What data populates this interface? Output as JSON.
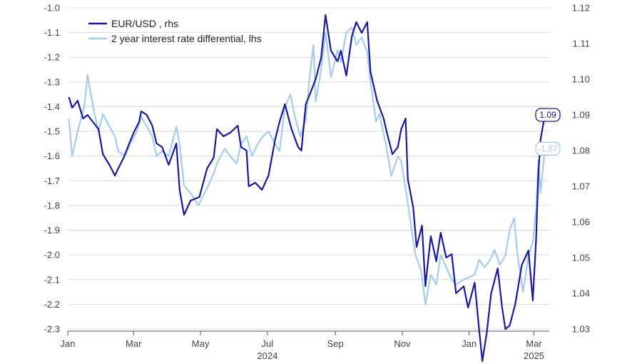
{
  "chart_data": {
    "type": "line",
    "left_axis": {
      "ylim": [
        -2.3,
        -1.0
      ],
      "ticks": [
        "-1.0",
        "-1.1",
        "-1.2",
        "-1.3",
        "-1.4",
        "-1.5",
        "-1.6",
        "-1.7",
        "-1.8",
        "-1.9",
        "-2.0",
        "-2.1",
        "-2.2",
        "-2.3"
      ]
    },
    "right_axis": {
      "ylim": [
        1.03,
        1.12
      ],
      "ticks": [
        "1.12",
        "1.11",
        "1.10",
        "1.09",
        "1.08",
        "1.07",
        "1.06",
        "1.05",
        "1.04",
        "1.03"
      ]
    },
    "x_axis": {
      "range": [
        "2024-01-01",
        "2025-03-15"
      ],
      "month_labels": [
        {
          "label": "Jan",
          "date": "2024-01-01"
        },
        {
          "label": "Mar",
          "date": "2024-03-01"
        },
        {
          "label": "May",
          "date": "2024-05-01"
        },
        {
          "label": "Jul",
          "date": "2024-07-01"
        },
        {
          "label": "Sep",
          "date": "2024-09-01"
        },
        {
          "label": "Nov",
          "date": "2024-11-01"
        },
        {
          "label": "Jan",
          "date": "2025-01-01"
        },
        {
          "label": "Mar",
          "date": "2025-03-01"
        }
      ],
      "year_labels": [
        {
          "label": "2024",
          "date": "2024-07-01"
        },
        {
          "label": "2025",
          "date": "2025-03-01"
        }
      ]
    },
    "grid": "horizontal",
    "legend_position": "top-left",
    "series": [
      {
        "name": "EUR/USD , rhs",
        "axis": "right",
        "color": "#1a1aa0",
        "points": [
          [
            "2024-01-02",
            1.095
          ],
          [
            "2024-01-05",
            1.092
          ],
          [
            "2024-01-10",
            1.094
          ],
          [
            "2024-01-15",
            1.089
          ],
          [
            "2024-01-19",
            1.09
          ],
          [
            "2024-01-24",
            1.088
          ],
          [
            "2024-01-29",
            1.086
          ],
          [
            "2024-02-02",
            1.079
          ],
          [
            "2024-02-08",
            1.076
          ],
          [
            "2024-02-13",
            1.073
          ],
          [
            "2024-02-16",
            1.075
          ],
          [
            "2024-02-21",
            1.078
          ],
          [
            "2024-02-26",
            1.082
          ],
          [
            "2024-03-01",
            1.085
          ],
          [
            "2024-03-06",
            1.088
          ],
          [
            "2024-03-08",
            1.091
          ],
          [
            "2024-03-13",
            1.09
          ],
          [
            "2024-03-18",
            1.087
          ],
          [
            "2024-03-22",
            1.082
          ],
          [
            "2024-03-27",
            1.081
          ],
          [
            "2024-04-02",
            1.076
          ],
          [
            "2024-04-09",
            1.082
          ],
          [
            "2024-04-12",
            1.069
          ],
          [
            "2024-04-16",
            1.062
          ],
          [
            "2024-04-22",
            1.066
          ],
          [
            "2024-04-30",
            1.067
          ],
          [
            "2024-05-07",
            1.075
          ],
          [
            "2024-05-13",
            1.078
          ],
          [
            "2024-05-16",
            1.086
          ],
          [
            "2024-05-22",
            1.084
          ],
          [
            "2024-05-28",
            1.085
          ],
          [
            "2024-06-04",
            1.087
          ],
          [
            "2024-06-07",
            1.081
          ],
          [
            "2024-06-12",
            1.08
          ],
          [
            "2024-06-14",
            1.07
          ],
          [
            "2024-06-20",
            1.071
          ],
          [
            "2024-06-26",
            1.069
          ],
          [
            "2024-07-02",
            1.073
          ],
          [
            "2024-07-08",
            1.083
          ],
          [
            "2024-07-12",
            1.088
          ],
          [
            "2024-07-17",
            1.093
          ],
          [
            "2024-07-23",
            1.086
          ],
          [
            "2024-07-29",
            1.081
          ],
          [
            "2024-08-01",
            1.08
          ],
          [
            "2024-08-05",
            1.093
          ],
          [
            "2024-08-09",
            1.096
          ],
          [
            "2024-08-14",
            1.1
          ],
          [
            "2024-08-19",
            1.106
          ],
          [
            "2024-08-23",
            1.118
          ],
          [
            "2024-08-28",
            1.108
          ],
          [
            "2024-09-03",
            1.105
          ],
          [
            "2024-09-06",
            1.108
          ],
          [
            "2024-09-11",
            1.101
          ],
          [
            "2024-09-16",
            1.112
          ],
          [
            "2024-09-20",
            1.116
          ],
          [
            "2024-09-25",
            1.113
          ],
          [
            "2024-09-30",
            1.116
          ],
          [
            "2024-10-03",
            1.102
          ],
          [
            "2024-10-09",
            1.094
          ],
          [
            "2024-10-15",
            1.089
          ],
          [
            "2024-10-18",
            1.085
          ],
          [
            "2024-10-23",
            1.079
          ],
          [
            "2024-10-28",
            1.081
          ],
          [
            "2024-10-31",
            1.086
          ],
          [
            "2024-11-04",
            1.089
          ],
          [
            "2024-11-06",
            1.072
          ],
          [
            "2024-11-11",
            1.064
          ],
          [
            "2024-11-14",
            1.053
          ],
          [
            "2024-11-19",
            1.059
          ],
          [
            "2024-11-22",
            1.042
          ],
          [
            "2024-11-27",
            1.056
          ],
          [
            "2024-12-02",
            1.049
          ],
          [
            "2024-12-06",
            1.057
          ],
          [
            "2024-12-11",
            1.05
          ],
          [
            "2024-12-16",
            1.051
          ],
          [
            "2024-12-20",
            1.04
          ],
          [
            "2024-12-27",
            1.042
          ],
          [
            "2024-12-31",
            1.036
          ],
          [
            "2025-01-06",
            1.043
          ],
          [
            "2025-01-10",
            1.03
          ],
          [
            "2025-01-13",
            1.021
          ],
          [
            "2025-01-17",
            1.029
          ],
          [
            "2025-01-21",
            1.04
          ],
          [
            "2025-01-27",
            1.047
          ],
          [
            "2025-01-31",
            1.036
          ],
          [
            "2025-02-03",
            1.03
          ],
          [
            "2025-02-07",
            1.031
          ],
          [
            "2025-02-12",
            1.037
          ],
          [
            "2025-02-18",
            1.048
          ],
          [
            "2025-02-24",
            1.052
          ],
          [
            "2025-02-28",
            1.038
          ],
          [
            "2025-03-03",
            1.055
          ],
          [
            "2025-03-05",
            1.073
          ],
          [
            "2025-03-07",
            1.083
          ],
          [
            "2025-03-11",
            1.09
          ]
        ],
        "end_label": "1.09"
      },
      {
        "name": "2 year interest rate differential, lhs",
        "axis": "left",
        "color": "#a6cbee",
        "points": [
          [
            "2024-01-02",
            -1.45
          ],
          [
            "2024-01-05",
            -1.6
          ],
          [
            "2024-01-10",
            -1.5
          ],
          [
            "2024-01-16",
            -1.4
          ],
          [
            "2024-01-19",
            -1.27
          ],
          [
            "2024-01-24",
            -1.4
          ],
          [
            "2024-01-29",
            -1.5
          ],
          [
            "2024-02-02",
            -1.43
          ],
          [
            "2024-02-08",
            -1.48
          ],
          [
            "2024-02-13",
            -1.52
          ],
          [
            "2024-02-16",
            -1.58
          ],
          [
            "2024-02-22",
            -1.6
          ],
          [
            "2024-02-27",
            -1.55
          ],
          [
            "2024-03-04",
            -1.5
          ],
          [
            "2024-03-08",
            -1.44
          ],
          [
            "2024-03-13",
            -1.48
          ],
          [
            "2024-03-18",
            -1.52
          ],
          [
            "2024-03-22",
            -1.6
          ],
          [
            "2024-03-27",
            -1.58
          ],
          [
            "2024-04-02",
            -1.6
          ],
          [
            "2024-04-09",
            -1.48
          ],
          [
            "2024-04-12",
            -1.55
          ],
          [
            "2024-04-16",
            -1.72
          ],
          [
            "2024-04-22",
            -1.75
          ],
          [
            "2024-04-29",
            -1.8
          ],
          [
            "2024-05-07",
            -1.73
          ],
          [
            "2024-05-13",
            -1.67
          ],
          [
            "2024-05-17",
            -1.62
          ],
          [
            "2024-05-23",
            -1.57
          ],
          [
            "2024-05-28",
            -1.6
          ],
          [
            "2024-06-03",
            -1.63
          ],
          [
            "2024-06-07",
            -1.55
          ],
          [
            "2024-06-12",
            -1.52
          ],
          [
            "2024-06-17",
            -1.6
          ],
          [
            "2024-06-21",
            -1.56
          ],
          [
            "2024-06-27",
            -1.52
          ],
          [
            "2024-07-02",
            -1.5
          ],
          [
            "2024-07-08",
            -1.55
          ],
          [
            "2024-07-12",
            -1.58
          ],
          [
            "2024-07-17",
            -1.4
          ],
          [
            "2024-07-22",
            -1.35
          ],
          [
            "2024-07-26",
            -1.44
          ],
          [
            "2024-07-31",
            -1.52
          ],
          [
            "2024-08-05",
            -1.45
          ],
          [
            "2024-08-08",
            -1.3
          ],
          [
            "2024-08-12",
            -1.15
          ],
          [
            "2024-08-14",
            -1.38
          ],
          [
            "2024-08-19",
            -1.25
          ],
          [
            "2024-08-23",
            -1.1
          ],
          [
            "2024-08-28",
            -1.28
          ],
          [
            "2024-09-03",
            -1.17
          ],
          [
            "2024-09-06",
            -1.22
          ],
          [
            "2024-09-11",
            -1.1
          ],
          [
            "2024-09-16",
            -1.08
          ],
          [
            "2024-09-20",
            -1.15
          ],
          [
            "2024-09-25",
            -1.12
          ],
          [
            "2024-09-30",
            -1.18
          ],
          [
            "2024-10-03",
            -1.3
          ],
          [
            "2024-10-08",
            -1.46
          ],
          [
            "2024-10-11",
            -1.43
          ],
          [
            "2024-10-17",
            -1.55
          ],
          [
            "2024-10-22",
            -1.68
          ],
          [
            "2024-10-28",
            -1.6
          ],
          [
            "2024-10-31",
            -1.62
          ],
          [
            "2024-11-05",
            -1.76
          ],
          [
            "2024-11-08",
            -1.85
          ],
          [
            "2024-11-13",
            -2.0
          ],
          [
            "2024-11-18",
            -2.06
          ],
          [
            "2024-11-22",
            -2.2
          ],
          [
            "2024-11-27",
            -2.08
          ],
          [
            "2024-12-02",
            -2.12
          ],
          [
            "2024-12-06",
            -2.0
          ],
          [
            "2024-12-11",
            -2.05
          ],
          [
            "2024-12-16",
            -2.1
          ],
          [
            "2024-12-20",
            -2.12
          ],
          [
            "2024-12-27",
            -2.1
          ],
          [
            "2025-01-06",
            -2.08
          ],
          [
            "2025-01-10",
            -2.02
          ],
          [
            "2025-01-15",
            -2.05
          ],
          [
            "2025-01-20",
            -2.02
          ],
          [
            "2025-01-24",
            -1.98
          ],
          [
            "2025-01-29",
            -2.04
          ],
          [
            "2025-02-03",
            -2.0
          ],
          [
            "2025-02-07",
            -1.9
          ],
          [
            "2025-02-11",
            -1.85
          ],
          [
            "2025-02-14",
            -2.0
          ],
          [
            "2025-02-19",
            -2.15
          ],
          [
            "2025-02-24",
            -2.0
          ],
          [
            "2025-02-28",
            -1.95
          ],
          [
            "2025-03-03",
            -1.82
          ],
          [
            "2025-03-05",
            -1.62
          ],
          [
            "2025-03-07",
            -1.75
          ],
          [
            "2025-03-11",
            -1.57
          ]
        ],
        "end_label": "-1.57"
      }
    ]
  }
}
